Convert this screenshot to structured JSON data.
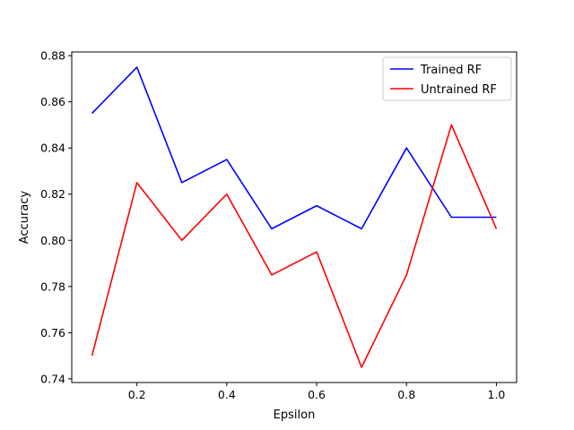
{
  "chart_data": {
    "type": "line",
    "title": "",
    "xlabel": "Epsilon",
    "ylabel": "Accuracy",
    "x": [
      0.1,
      0.2,
      0.3,
      0.4,
      0.5,
      0.6,
      0.7,
      0.8,
      0.9,
      1.0
    ],
    "series": [
      {
        "name": "Trained RF",
        "color": "#0000ff",
        "values": [
          0.855,
          0.875,
          0.825,
          0.835,
          0.805,
          0.815,
          0.805,
          0.84,
          0.81,
          0.81
        ]
      },
      {
        "name": "Untrained RF",
        "color": "#ff0000",
        "values": [
          0.75,
          0.825,
          0.8,
          0.82,
          0.785,
          0.795,
          0.745,
          0.785,
          0.85,
          0.805
        ]
      }
    ],
    "xlim": [
      0.055,
      1.045
    ],
    "ylim": [
      0.7384,
      0.8816
    ],
    "xticks": [
      "0.2",
      "0.4",
      "0.6",
      "0.8",
      "1.0"
    ],
    "yticks": [
      "0.74",
      "0.76",
      "0.78",
      "0.80",
      "0.82",
      "0.84",
      "0.86",
      "0.88"
    ],
    "grid": false,
    "legend_position": "top-right"
  }
}
